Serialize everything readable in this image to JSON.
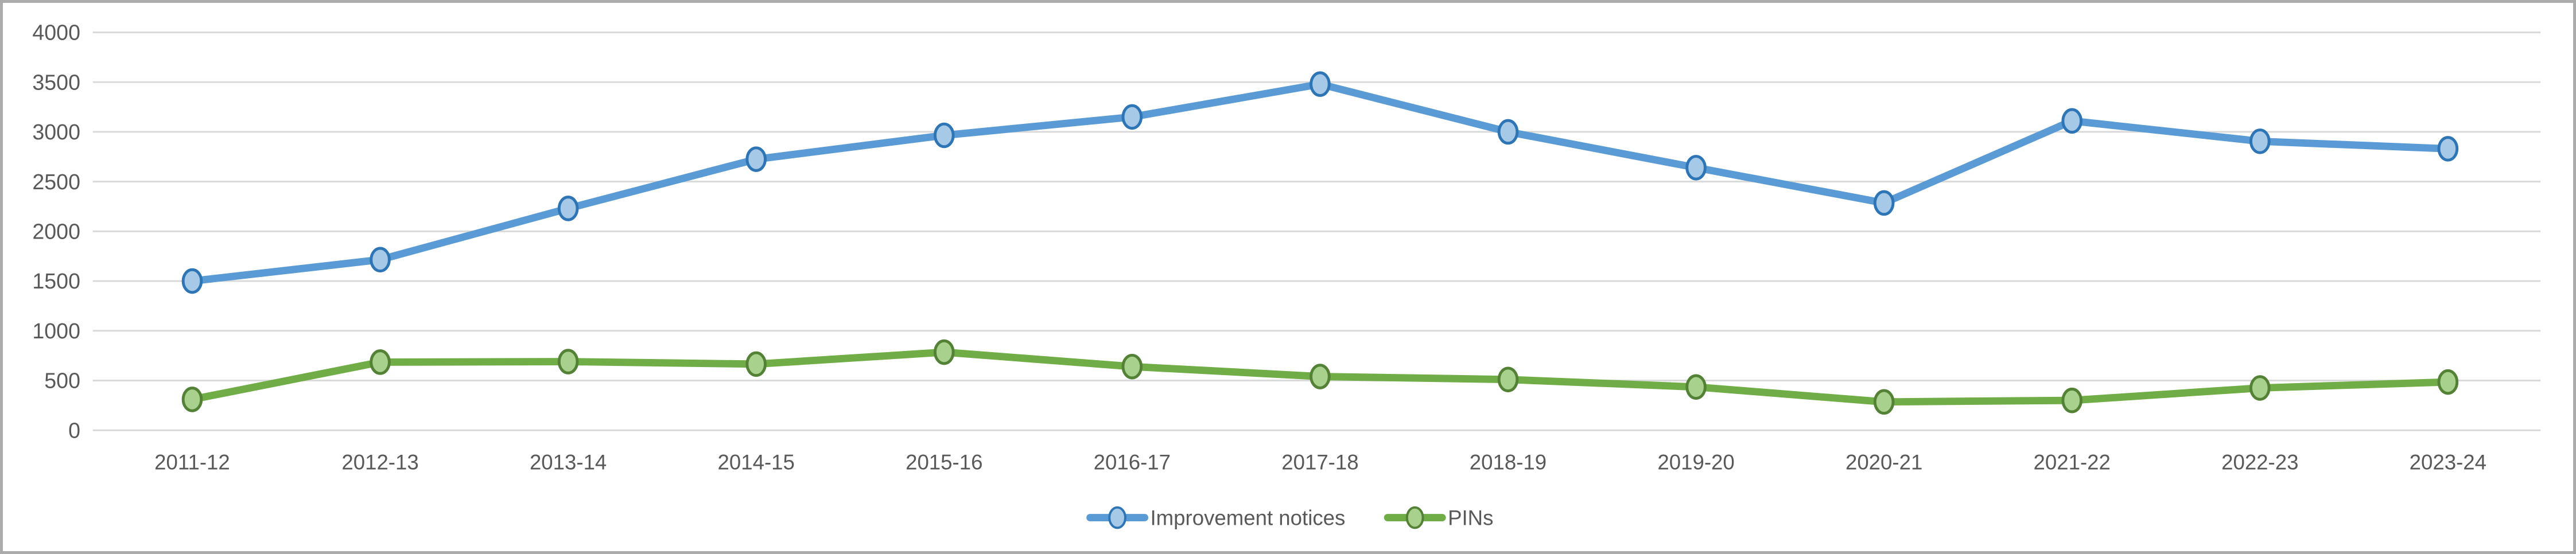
{
  "chart": {
    "background_color": "#FFFFFF",
    "frame_border_color": "#ABABAB",
    "gridline_color": "#D9D9D9",
    "text_color": "#595959"
  },
  "chart_data": {
    "type": "line",
    "title": "",
    "categories": [
      "2011-12",
      "2012-13",
      "2013-14",
      "2014-15",
      "2015-16",
      "2016-17",
      "2017-18",
      "2018-19",
      "2019-20",
      "2020-21",
      "2021-22",
      "2022-23",
      "2023-24"
    ],
    "series": [
      {
        "name": "Improvement notices",
        "values": [
          1500,
          1715,
          2230,
          2725,
          2965,
          3150,
          3480,
          3000,
          2640,
          2285,
          3110,
          2905,
          2830
        ],
        "line_color": "#5B9BD5",
        "marker_fill": "#A6C9E8",
        "marker_border": "#2E75B6"
      },
      {
        "name": "PINs",
        "values": [
          310,
          685,
          690,
          665,
          785,
          640,
          540,
          510,
          435,
          285,
          300,
          425,
          485
        ],
        "line_color": "#70AD47",
        "marker_fill": "#A9D18E",
        "marker_border": "#538135"
      }
    ],
    "y_axis": {
      "min": 0,
      "max": 4000,
      "step": 500,
      "tick_labels": [
        "0",
        "500",
        "1000",
        "1500",
        "2000",
        "2500",
        "3000",
        "3500",
        "4000"
      ]
    },
    "x_axis": {
      "tick_labels": [
        "2011-12",
        "2012-13",
        "2013-14",
        "2014-15",
        "2015-16",
        "2016-17",
        "2017-18",
        "2018-19",
        "2019-20",
        "2020-21",
        "2021-22",
        "2022-23",
        "2023-24"
      ]
    },
    "grid": true,
    "legend_position": "bottom"
  }
}
